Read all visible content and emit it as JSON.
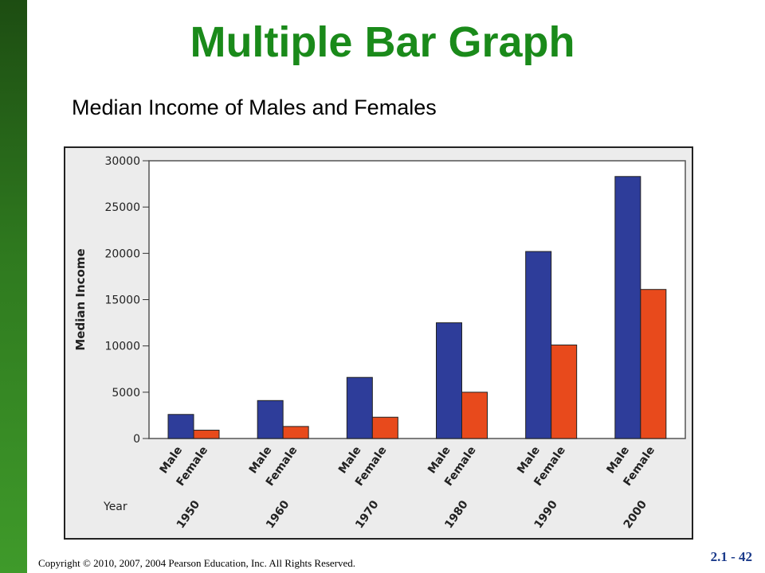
{
  "slide": {
    "title": "Multiple Bar Graph",
    "copyright": "Copyright © 2010, 2007, 2004 Pearson Education, Inc. All Rights Reserved.",
    "slide_number": "2.1 - 42"
  },
  "colors": {
    "title": "#1a8a1a",
    "male_bar": "#2e3d9a",
    "female_bar": "#e84a1c",
    "sidebar": "#2f7a1f"
  },
  "chart_data": {
    "type": "bar",
    "title": "Median Income of Males and Females",
    "ylabel": "Median Income",
    "xlabel": "Year",
    "ylim": [
      0,
      30000
    ],
    "yticks": [
      0,
      5000,
      10000,
      15000,
      20000,
      25000,
      30000
    ],
    "grid": false,
    "categories": [
      "1950",
      "1960",
      "1970",
      "1980",
      "1990",
      "2000"
    ],
    "series": [
      {
        "name": "Male",
        "values": [
          2600,
          4100,
          6600,
          12500,
          20200,
          28300
        ]
      },
      {
        "name": "Female",
        "values": [
          900,
          1300,
          2300,
          5000,
          10100,
          16100
        ]
      }
    ]
  }
}
